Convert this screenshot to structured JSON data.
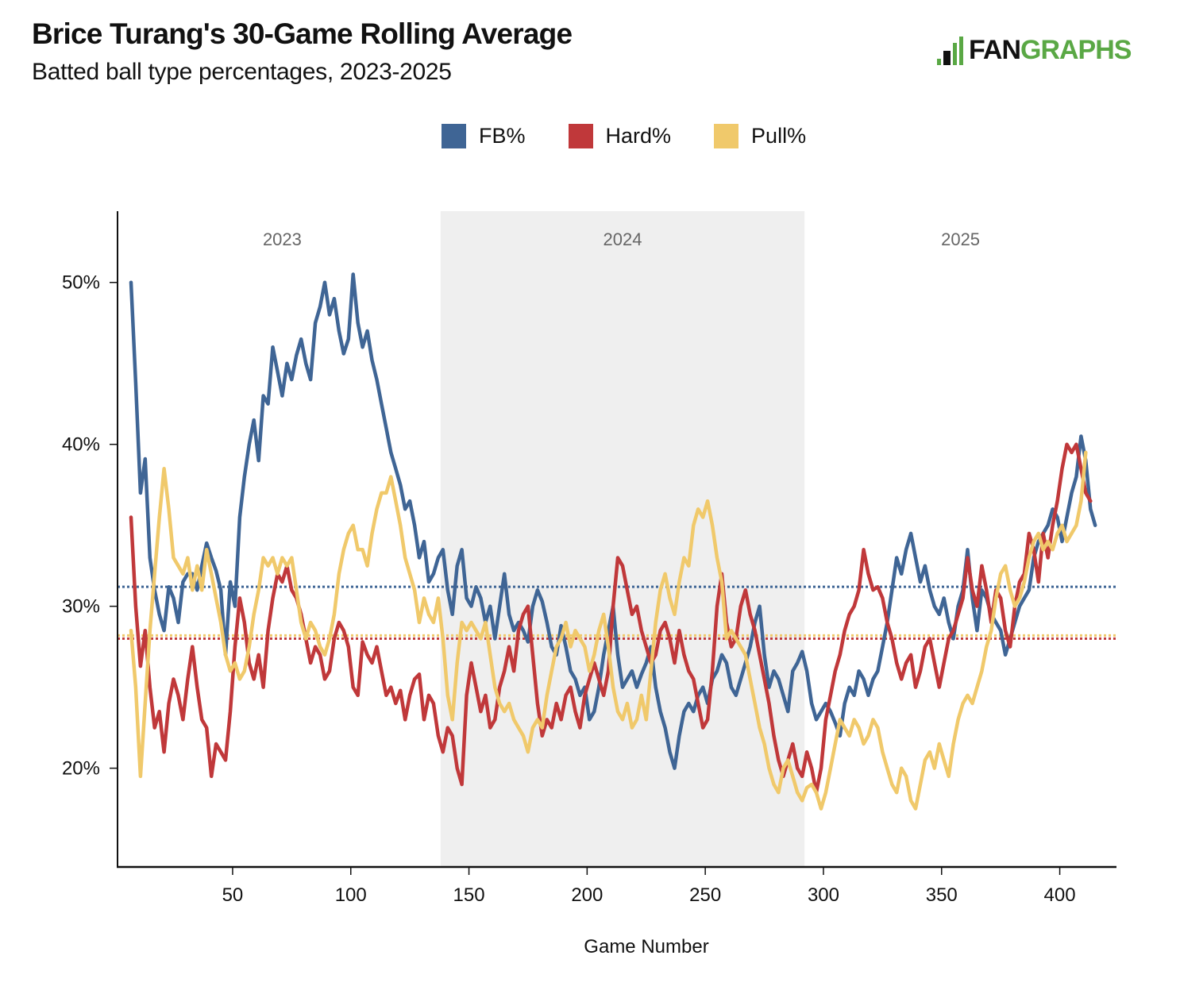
{
  "header": {
    "title": "Brice Turang's 30-Game Rolling Average",
    "subtitle": "Batted ball type percentages, 2023-2025"
  },
  "logo": {
    "icon": "batter-silhouette-icon",
    "text_part1": "FAN",
    "text_part2": "GRAPHS",
    "brand_color": "#5aa845"
  },
  "legend": [
    {
      "name": "FB%",
      "color": "#3f6595"
    },
    {
      "name": "Hard%",
      "color": "#c0383a"
    },
    {
      "name": "Pull%",
      "color": "#f0c96b"
    }
  ],
  "chart_data": {
    "type": "line",
    "title": "Brice Turang's 30-Game Rolling Average",
    "subtitle": "Batted ball type percentages, 2023-2025",
    "xlabel": "Game Number",
    "ylabel": "",
    "xlim": [
      1.3,
      424
    ],
    "ylim": [
      13.9,
      54.4
    ],
    "x_ticks": [
      50,
      100,
      150,
      200,
      250,
      300,
      350,
      400
    ],
    "y_ticks": [
      20,
      30,
      40,
      50
    ],
    "y_tick_format": "{v}%",
    "grid": false,
    "legend_position": "top-center",
    "season_bands": [
      {
        "label": "2023",
        "start": 1.3,
        "end": 138,
        "shaded": false
      },
      {
        "label": "2024",
        "start": 138,
        "end": 292,
        "shaded": true,
        "color": "#efefef"
      },
      {
        "label": "2025",
        "start": 292,
        "end": 424,
        "shaded": false
      }
    ],
    "reference_lines": [
      {
        "series": "FB%",
        "value": 31.2,
        "style": "dotted"
      },
      {
        "series": "Pull%",
        "value": 28.2,
        "style": "dotted"
      },
      {
        "series": "Hard%",
        "value": 28.0,
        "style": "dotted"
      }
    ],
    "x": [
      7,
      9,
      11,
      13,
      15,
      17,
      19,
      21,
      23,
      25,
      27,
      29,
      31,
      33,
      35,
      37,
      39,
      41,
      43,
      45,
      47,
      49,
      51,
      53,
      55,
      57,
      59,
      61,
      63,
      65,
      67,
      69,
      71,
      73,
      75,
      77,
      79,
      81,
      83,
      85,
      87,
      89,
      91,
      93,
      95,
      97,
      99,
      101,
      103,
      105,
      107,
      109,
      111,
      113,
      115,
      117,
      119,
      121,
      123,
      125,
      127,
      129,
      131,
      133,
      135,
      137,
      139,
      141,
      143,
      145,
      147,
      149,
      151,
      153,
      155,
      157,
      159,
      161,
      163,
      165,
      167,
      169,
      171,
      173,
      175,
      177,
      179,
      181,
      183,
      185,
      187,
      189,
      191,
      193,
      195,
      197,
      199,
      201,
      203,
      205,
      207,
      209,
      211,
      213,
      215,
      217,
      219,
      221,
      223,
      225,
      227,
      229,
      231,
      233,
      235,
      237,
      239,
      241,
      243,
      245,
      247,
      249,
      251,
      253,
      255,
      257,
      259,
      261,
      263,
      265,
      267,
      269,
      271,
      273,
      275,
      277,
      279,
      281,
      283,
      285,
      287,
      289,
      291,
      293,
      295,
      297,
      299,
      301,
      303,
      305,
      307,
      309,
      311,
      313,
      315,
      317,
      319,
      321,
      323,
      325,
      327,
      329,
      331,
      333,
      335,
      337,
      339,
      341,
      343,
      345,
      347,
      349,
      351,
      353,
      355,
      357,
      359,
      361,
      363,
      365,
      367,
      369,
      371,
      373,
      375,
      377,
      379,
      381,
      383,
      385,
      387,
      389,
      391,
      393,
      395,
      397,
      399,
      401,
      403,
      405,
      407,
      409,
      411,
      413,
      415,
      417,
      419,
      421,
      423
    ],
    "series": [
      {
        "name": "FB%",
        "values": [
          50.0,
          43.8,
          37.0,
          39.1,
          33.0,
          31.0,
          29.5,
          28.5,
          31.2,
          30.5,
          29.0,
          31.5,
          32.0,
          32.0,
          31.0,
          32.5,
          33.9,
          33.0,
          32.2,
          31.0,
          27.0,
          31.5,
          30.0,
          35.5,
          38.0,
          40.0,
          41.5,
          39.0,
          43.0,
          42.5,
          46.0,
          44.5,
          43.0,
          45.0,
          44.0,
          45.5,
          46.5,
          45.0,
          44.0,
          47.5,
          48.5,
          50.0,
          48.0,
          49.0,
          47.0,
          45.6,
          46.5,
          50.5,
          47.5,
          46.0,
          47.0,
          45.2,
          44.0,
          42.5,
          41.0,
          39.5,
          38.5,
          37.5,
          36.0,
          36.5,
          35.0,
          33.0,
          34.0,
          31.5,
          32.0,
          33.0,
          33.5,
          31.0,
          29.5,
          32.5,
          33.5,
          30.5,
          30.0,
          31.2,
          30.5,
          29.0,
          30.0,
          28.0,
          30.0,
          32.0,
          29.5,
          28.5,
          29.0,
          28.5,
          27.8,
          30.0,
          31.0,
          30.3,
          29.0,
          27.5,
          27.0,
          28.8,
          27.5,
          26.0,
          25.5,
          24.5,
          25.0,
          23.0,
          23.5,
          25.0,
          27.0,
          28.5,
          30.0,
          27.0,
          25.0,
          25.5,
          26.0,
          25.0,
          25.8,
          26.5,
          27.5,
          25.0,
          23.5,
          22.5,
          21.0,
          20.0,
          22.0,
          23.5,
          24.0,
          23.5,
          24.5,
          25.0,
          24.0,
          25.5,
          26.0,
          27.0,
          26.5,
          25.0,
          24.5,
          25.5,
          26.5,
          27.5,
          29.0,
          30.0,
          27.0,
          25.0,
          26.0,
          25.5,
          24.5,
          23.5,
          26.0,
          26.5,
          27.2,
          26.0,
          24.0,
          23.0,
          23.5,
          24.0,
          23.5,
          22.8,
          22.0,
          24.0,
          25.0,
          24.5,
          26.0,
          25.5,
          24.5,
          25.5,
          26.0,
          27.5,
          29.0,
          31.0,
          33.0,
          32.0,
          33.5,
          34.5,
          33.0,
          31.5,
          32.5,
          31.0,
          30.0,
          29.5,
          30.5,
          29.0,
          28.0,
          30.0,
          31.0,
          33.5,
          30.5,
          28.5,
          31.0,
          30.5,
          29.5,
          29.0,
          28.5,
          27.0,
          28.0,
          29.0,
          30.0,
          30.5,
          31.0,
          33.0,
          34.0,
          34.5,
          35.0,
          36.0,
          35.5,
          34.0,
          35.5,
          37.0,
          38.0,
          40.5,
          39.0,
          36.0,
          35.0
        ]
      },
      {
        "name": "Hard%",
        "values": [
          35.5,
          30.0,
          26.3,
          28.5,
          25.0,
          22.5,
          23.5,
          21.0,
          24.0,
          25.5,
          24.5,
          23.0,
          25.5,
          27.5,
          25.0,
          23.0,
          22.5,
          19.5,
          21.5,
          21.0,
          20.5,
          23.5,
          27.5,
          30.5,
          29.0,
          26.5,
          25.5,
          27.0,
          25.0,
          28.5,
          30.5,
          32.0,
          31.5,
          32.5,
          31.0,
          30.5,
          29.5,
          28.0,
          26.5,
          27.5,
          27.0,
          25.5,
          26.0,
          28.0,
          29.0,
          28.5,
          27.5,
          25.0,
          24.5,
          27.8,
          27.0,
          26.5,
          27.5,
          26.0,
          24.5,
          25.0,
          24.0,
          24.8,
          23.0,
          24.5,
          25.5,
          25.8,
          23.0,
          24.5,
          24.0,
          22.0,
          21.0,
          22.5,
          22.0,
          20.0,
          19.0,
          24.5,
          26.5,
          25.0,
          23.5,
          24.5,
          22.5,
          23.0,
          25.0,
          26.0,
          27.5,
          26.0,
          28.5,
          29.5,
          30.0,
          27.0,
          24.0,
          22.0,
          23.0,
          22.5,
          24.0,
          23.0,
          24.5,
          25.0,
          23.5,
          22.5,
          24.5,
          25.5,
          26.5,
          25.5,
          24.5,
          26.0,
          30.0,
          33.0,
          32.5,
          31.0,
          29.5,
          30.0,
          28.5,
          27.5,
          26.5,
          27.0,
          28.5,
          29.0,
          28.0,
          26.5,
          28.5,
          27.0,
          26.0,
          25.5,
          24.0,
          22.5,
          23.0,
          26.0,
          30.0,
          32.0,
          29.0,
          27.5,
          28.0,
          30.0,
          31.0,
          29.5,
          28.5,
          27.0,
          25.5,
          24.0,
          22.0,
          20.5,
          19.5,
          20.5,
          21.5,
          20.0,
          19.5,
          21.0,
          20.0,
          18.5,
          20.0,
          23.0,
          24.5,
          26.0,
          27.0,
          28.5,
          29.5,
          30.0,
          31.0,
          33.5,
          32.0,
          31.0,
          31.2,
          30.5,
          29.0,
          28.0,
          26.5,
          25.5,
          26.5,
          27.0,
          25.0,
          26.0,
          27.5,
          28.0,
          26.5,
          25.0,
          26.5,
          28.0,
          28.5,
          29.5,
          30.5,
          33.0,
          31.0,
          30.0,
          32.5,
          31.0,
          29.0,
          31.0,
          30.5,
          28.5,
          27.5,
          30.0,
          31.5,
          32.0,
          34.5,
          33.5,
          31.5,
          34.5,
          33.0,
          35.0,
          36.5,
          38.5,
          40.0,
          39.5,
          40.0,
          38.5,
          37.0,
          36.5
        ]
      },
      {
        "name": "Pull%",
        "values": [
          28.5,
          25.0,
          19.5,
          24.0,
          28.5,
          32.0,
          35.5,
          38.5,
          36.0,
          33.0,
          32.5,
          32.0,
          33.0,
          31.0,
          32.5,
          31.0,
          33.5,
          32.0,
          30.5,
          29.0,
          27.0,
          26.0,
          26.5,
          25.5,
          26.0,
          27.5,
          29.5,
          31.0,
          33.0,
          32.5,
          33.0,
          32.0,
          33.0,
          32.5,
          33.0,
          31.0,
          29.0,
          28.0,
          29.0,
          28.5,
          27.5,
          27.0,
          28.0,
          29.5,
          32.0,
          33.5,
          34.5,
          35.0,
          33.5,
          33.5,
          32.5,
          34.5,
          36.0,
          37.0,
          37.0,
          38.0,
          36.5,
          35.0,
          33.0,
          32.0,
          31.0,
          29.0,
          30.5,
          29.5,
          29.0,
          30.5,
          28.0,
          24.5,
          23.0,
          26.5,
          29.0,
          28.5,
          29.0,
          28.5,
          28.0,
          29.0,
          27.0,
          25.0,
          24.0,
          23.5,
          24.0,
          23.0,
          22.5,
          22.0,
          21.0,
          22.5,
          23.0,
          22.5,
          24.5,
          26.0,
          27.5,
          28.0,
          29.0,
          27.5,
          28.5,
          28.0,
          27.5,
          26.0,
          27.0,
          28.5,
          29.5,
          27.5,
          25.0,
          23.5,
          23.0,
          24.0,
          22.5,
          23.0,
          24.5,
          23.0,
          26.0,
          29.0,
          31.0,
          32.0,
          30.5,
          29.5,
          31.5,
          33.0,
          32.5,
          35.0,
          36.0,
          35.5,
          36.5,
          35.0,
          33.0,
          31.5,
          28.0,
          28.5,
          28.0,
          27.5,
          27.0,
          25.5,
          24.0,
          22.5,
          21.5,
          20.0,
          19.0,
          18.5,
          20.0,
          20.5,
          19.5,
          18.5,
          18.0,
          18.8,
          19.0,
          18.5,
          17.5,
          18.5,
          20.0,
          21.5,
          23.0,
          22.5,
          22.0,
          23.0,
          22.5,
          21.5,
          22.0,
          23.0,
          22.5,
          21.0,
          20.0,
          19.0,
          18.5,
          20.0,
          19.5,
          18.0,
          17.5,
          19.0,
          20.5,
          21.0,
          20.0,
          21.5,
          20.5,
          19.5,
          21.5,
          23.0,
          24.0,
          24.5,
          24.0,
          25.0,
          26.0,
          27.5,
          28.5,
          30.5,
          32.0,
          32.5,
          31.0,
          30.0,
          30.5,
          31.5,
          33.0,
          34.0,
          34.5,
          33.5,
          34.0,
          33.5,
          34.5,
          35.0,
          34.0,
          34.5,
          35.0,
          36.5,
          39.5
        ]
      }
    ]
  }
}
